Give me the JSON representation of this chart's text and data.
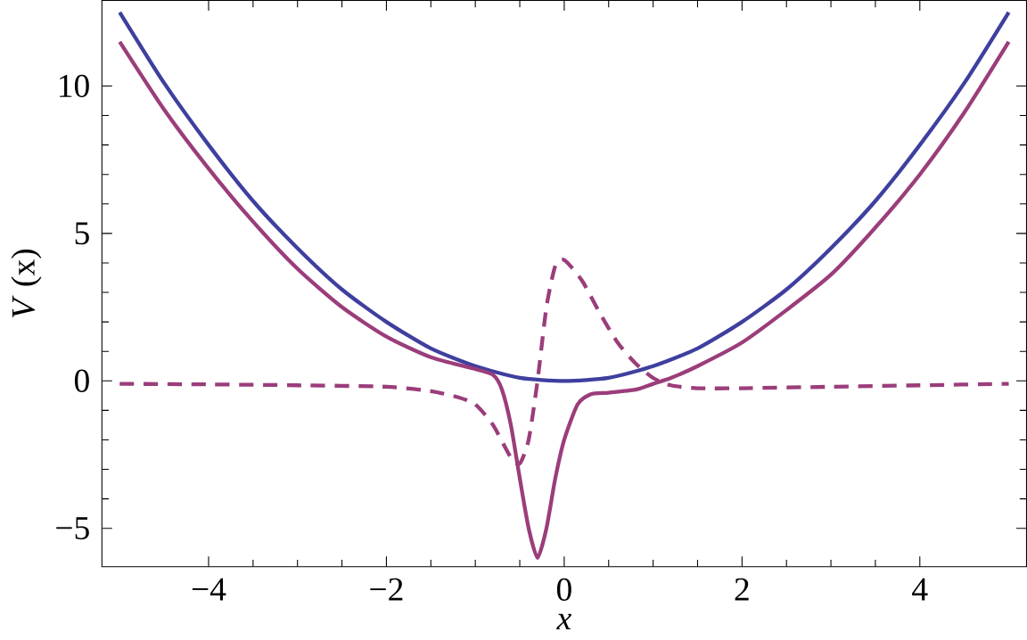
{
  "chart_data": {
    "type": "line",
    "xlabel": "x",
    "ylabel": "*V* (x)",
    "xlim": [
      -5.2,
      5.2
    ],
    "ylim": [
      -6.3,
      12.9
    ],
    "xticks": [
      {
        "value": -4,
        "label": "−4"
      },
      {
        "value": -2,
        "label": "−2"
      },
      0,
      2,
      4
    ],
    "yticks": [
      {
        "value": -5,
        "label": "−5"
      },
      0,
      5,
      10
    ],
    "series": [
      {
        "color": "#3f3f9f",
        "line_style": "solid",
        "x": [
          -5,
          -4.5,
          -4,
          -3.5,
          -3,
          -2.5,
          -2,
          -1.5,
          -1,
          -0.5,
          0,
          0.5,
          1,
          1.5,
          2,
          2.5,
          3,
          3.5,
          4,
          4.5,
          5
        ],
        "values": [
          12.5,
          10.1,
          8,
          6.1,
          4.5,
          3.1,
          2,
          1.1,
          0.5,
          0.1,
          0,
          0.1,
          0.5,
          1.1,
          2,
          3.1,
          4.5,
          6.1,
          8,
          10.1,
          12.5
        ]
      },
      {
        "color": "#9b3d7b",
        "line_style": "solid",
        "x": [
          -5,
          -4.5,
          -4,
          -3.5,
          -3,
          -2.5,
          -2,
          -1.5,
          -1,
          -0.8,
          -0.7,
          -0.6,
          -0.5,
          -0.4,
          -0.3,
          -0.2,
          -0.1,
          0,
          0.15,
          0.3,
          0.5,
          0.8,
          1,
          1.2,
          1.5,
          2,
          2.5,
          3,
          3.5,
          4,
          4.5,
          5
        ],
        "values": [
          11.5,
          9.2,
          7.2,
          5.4,
          3.8,
          2.5,
          1.5,
          0.8,
          0.4,
          0.2,
          -0.3,
          -1.5,
          -3.3,
          -5.0,
          -6.0,
          -5.0,
          -3.3,
          -2,
          -0.8,
          -0.45,
          -0.4,
          -0.3,
          -0.1,
          0.1,
          0.5,
          1.3,
          2.4,
          3.6,
          5.2,
          7.0,
          9.1,
          11.5
        ]
      },
      {
        "color": "#9b3d7b",
        "line_style": "dashed",
        "x": [
          -5,
          -4,
          -3,
          -2,
          -1.5,
          -1.2,
          -1,
          -0.8,
          -0.6,
          -0.5,
          -0.4,
          -0.3,
          -0.2,
          -0.1,
          0,
          0.2,
          0.4,
          0.6,
          0.8,
          1.0,
          1.2,
          1.5,
          2,
          3,
          4,
          5
        ],
        "values": [
          -0.1,
          -0.12,
          -0.15,
          -0.2,
          -0.35,
          -0.55,
          -0.8,
          -1.5,
          -2.6,
          -2.8,
          -2.0,
          0,
          2.5,
          3.9,
          4.1,
          3.4,
          2.3,
          1.3,
          0.6,
          0.1,
          -0.15,
          -0.25,
          -0.25,
          -0.2,
          -0.15,
          -0.1
        ]
      }
    ]
  }
}
